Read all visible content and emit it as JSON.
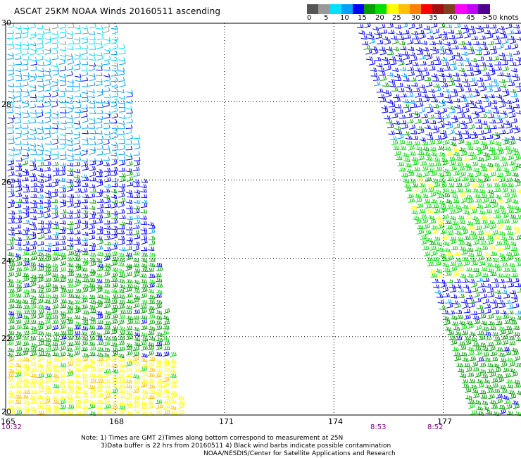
{
  "title": "ASCAT 25KM NOAA Winds 20160511 ascending",
  "color_scale": {
    "labels": [
      "0",
      "5",
      "10",
      "15",
      "20",
      "25",
      "30",
      "35",
      "40",
      "45",
      ">50 knots"
    ],
    "colors": [
      "#555555",
      "#9a9a9a",
      "#00e0ff",
      "#00a0ff",
      "#0000ff",
      "#00a000",
      "#00e000",
      "#ffff00",
      "#ffc000",
      "#ff8000",
      "#ff0000",
      "#a01010",
      "#804020",
      "#ff00ff",
      "#c000ff",
      "#500090"
    ]
  },
  "lon_labels": [
    "165",
    "168",
    "171",
    "174",
    "177"
  ],
  "lat_labels": [
    "30",
    "28",
    "26",
    "24",
    "22",
    "20"
  ],
  "pass_times": [
    "10:32",
    "8:53",
    "8:52"
  ],
  "notes": [
    "Note: 1) Times are GMT 2)Times along bottom correspond to measurement at 25N",
    "3)Data buffer is 22 hrs from 20160511 4) Black wind barbs indicate possible contamination",
    "NOAA/NESDIS/Center for Satellite Applications and Research"
  ],
  "swaths": [
    {
      "name": "west-swath",
      "bands": [
        {
          "lat_range": [
            29.0,
            30.0
          ],
          "dominant_color": "#00e0ff",
          "speed_range_knots": "5-10",
          "direction": "easterly"
        },
        {
          "lat_range": [
            26.5,
            29.0
          ],
          "dominant_color": "#00a0ff",
          "speed_range_knots": "10-15",
          "direction": "easterly"
        },
        {
          "lat_range": [
            24.2,
            26.5
          ],
          "dominant_color": "#0000ff",
          "speed_range_knots": "15-20",
          "direction": "easterly"
        },
        {
          "lat_range": [
            21.5,
            24.2
          ],
          "dominant_color": "#00a000",
          "speed_range_knots": "20-25",
          "direction": "easterly"
        },
        {
          "lat_range": [
            20.0,
            21.5
          ],
          "dominant_color": "#ffff00",
          "speed_range_knots": "25-30",
          "direction": "easterly"
        }
      ]
    },
    {
      "name": "east-swath",
      "bands": [
        {
          "lat_range": [
            27.0,
            30.0
          ],
          "dominant_color": "#0000ff",
          "speed_range_knots": "15-20",
          "direction": "easterly"
        },
        {
          "lat_range": [
            23.5,
            27.0
          ],
          "dominant_color": "#00e000",
          "speed_range_knots": "20-25",
          "direction": "easterly"
        },
        {
          "lat_range": [
            22.5,
            23.5
          ],
          "dominant_color": "#0000ff",
          "speed_range_knots": "15-20",
          "direction": "easterly"
        },
        {
          "lat_range": [
            20.0,
            22.5
          ],
          "dominant_color": "#00a000",
          "speed_range_knots": "20-25",
          "direction": "easterly"
        }
      ]
    }
  ]
}
